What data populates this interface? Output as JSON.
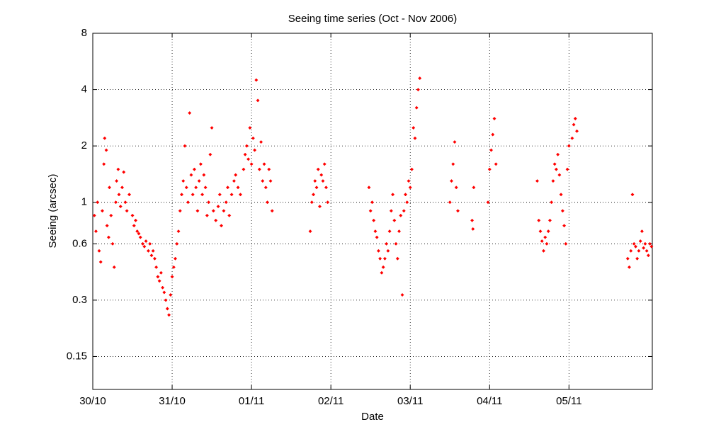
{
  "chart_data": {
    "type": "scatter",
    "title": "Seeing time series (Oct - Nov 2006)",
    "xlabel": "Date",
    "ylabel": "Seeing (arcsec)",
    "color": "#ff0000",
    "ylog": true,
    "grid": true,
    "xlim": [
      0,
      7.05
    ],
    "xticks": [
      {
        "value": 0,
        "label": "30/10"
      },
      {
        "value": 1,
        "label": "31/10"
      },
      {
        "value": 2,
        "label": "01/11"
      },
      {
        "value": 3,
        "label": "02/11"
      },
      {
        "value": 4,
        "label": "03/11"
      },
      {
        "value": 5,
        "label": "04/11"
      },
      {
        "value": 6,
        "label": "05/11"
      }
    ],
    "ylim": [
      0.1,
      8
    ],
    "yticks": [
      0.15,
      0.3,
      0.6,
      1,
      2,
      4,
      8
    ],
    "x": [
      0.02,
      0.04,
      0.06,
      0.08,
      0.1,
      0.12,
      0.14,
      0.15,
      0.17,
      0.18,
      0.2,
      0.21,
      0.23,
      0.25,
      0.27,
      0.29,
      0.3,
      0.32,
      0.33,
      0.35,
      0.37,
      0.39,
      0.41,
      0.43,
      0.46,
      0.5,
      0.52,
      0.54,
      0.56,
      0.58,
      0.6,
      0.63,
      0.65,
      0.67,
      0.7,
      0.72,
      0.74,
      0.76,
      0.78,
      0.8,
      0.82,
      0.84,
      0.86,
      0.88,
      0.9,
      0.92,
      0.94,
      0.96,
      0.98,
      1.0,
      1.02,
      1.04,
      1.06,
      1.08,
      1.1,
      1.12,
      1.14,
      1.16,
      1.18,
      1.2,
      1.22,
      1.24,
      1.26,
      1.28,
      1.3,
      1.32,
      1.34,
      1.36,
      1.38,
      1.4,
      1.42,
      1.44,
      1.46,
      1.48,
      1.5,
      1.52,
      1.55,
      1.58,
      1.6,
      1.62,
      1.65,
      1.68,
      1.7,
      1.72,
      1.75,
      1.78,
      1.8,
      1.83,
      1.86,
      1.9,
      1.92,
      1.94,
      1.96,
      1.98,
      2.0,
      2.02,
      2.04,
      2.06,
      2.08,
      2.1,
      2.12,
      2.14,
      2.16,
      2.18,
      2.2,
      2.22,
      2.24,
      2.26,
      2.74,
      2.76,
      2.78,
      2.8,
      2.82,
      2.84,
      2.86,
      2.88,
      2.9,
      2.92,
      2.94,
      2.96,
      3.48,
      3.5,
      3.52,
      3.54,
      3.56,
      3.58,
      3.6,
      3.62,
      3.64,
      3.66,
      3.68,
      3.7,
      3.72,
      3.74,
      3.76,
      3.78,
      3.8,
      3.82,
      3.84,
      3.86,
      3.88,
      3.9,
      3.92,
      3.94,
      3.96,
      3.98,
      4.0,
      4.02,
      4.04,
      4.06,
      4.08,
      4.1,
      4.12,
      4.5,
      4.52,
      4.54,
      4.56,
      4.58,
      4.6,
      4.78,
      4.79,
      4.8,
      4.98,
      5.0,
      5.02,
      5.04,
      5.06,
      5.08,
      5.6,
      5.62,
      5.64,
      5.66,
      5.68,
      5.7,
      5.72,
      5.74,
      5.76,
      5.78,
      5.8,
      5.82,
      5.84,
      5.86,
      5.88,
      5.9,
      5.92,
      5.94,
      5.96,
      5.98,
      6.0,
      6.04,
      6.06,
      6.08,
      6.1,
      6.74,
      6.76,
      6.78,
      6.8,
      6.82,
      6.84,
      6.86,
      6.88,
      6.9,
      6.92,
      6.94,
      6.96,
      6.98,
      7.0,
      7.02,
      7.04
    ],
    "values": [
      0.85,
      0.7,
      1.0,
      0.55,
      0.48,
      0.9,
      1.6,
      2.2,
      1.9,
      0.75,
      0.65,
      1.2,
      0.85,
      0.6,
      0.45,
      1.0,
      1.3,
      1.5,
      1.1,
      0.95,
      1.2,
      1.45,
      1.0,
      0.9,
      1.1,
      0.85,
      0.75,
      0.8,
      0.7,
      0.68,
      0.65,
      0.6,
      0.58,
      0.62,
      0.55,
      0.6,
      0.52,
      0.55,
      0.5,
      0.45,
      0.4,
      0.38,
      0.42,
      0.35,
      0.33,
      0.3,
      0.27,
      0.25,
      0.32,
      0.4,
      0.45,
      0.5,
      0.6,
      0.7,
      0.9,
      1.1,
      1.3,
      2.0,
      1.2,
      1.0,
      3.0,
      1.4,
      1.1,
      1.5,
      1.2,
      0.9,
      1.3,
      1.6,
      1.1,
      1.4,
      1.2,
      0.85,
      1.0,
      1.8,
      2.5,
      0.9,
      0.8,
      0.95,
      1.1,
      0.75,
      0.9,
      1.0,
      1.2,
      0.85,
      1.1,
      1.3,
      1.4,
      1.2,
      1.1,
      1.5,
      1.8,
      2.0,
      1.7,
      2.5,
      1.6,
      2.2,
      1.9,
      4.5,
      3.5,
      1.5,
      2.1,
      1.3,
      1.6,
      1.2,
      1.0,
      1.5,
      1.3,
      0.9,
      0.7,
      1.0,
      1.1,
      1.3,
      1.2,
      1.5,
      0.95,
      1.4,
      1.3,
      1.6,
      1.2,
      1.0,
      1.2,
      0.9,
      1.0,
      0.8,
      0.7,
      0.65,
      0.55,
      0.5,
      0.42,
      0.45,
      0.5,
      0.6,
      0.55,
      0.7,
      0.9,
      1.1,
      0.8,
      0.6,
      0.5,
      0.7,
      0.85,
      0.32,
      0.9,
      1.1,
      1.0,
      1.3,
      1.2,
      1.5,
      2.5,
      2.2,
      3.2,
      4.0,
      4.6,
      1.0,
      1.3,
      1.6,
      2.1,
      1.2,
      0.9,
      0.8,
      0.72,
      1.2,
      1.0,
      1.5,
      1.9,
      2.3,
      2.8,
      1.6,
      1.3,
      0.8,
      0.7,
      0.62,
      0.55,
      0.65,
      0.6,
      0.7,
      0.8,
      1.0,
      1.3,
      1.6,
      1.5,
      1.8,
      1.4,
      1.1,
      0.9,
      0.75,
      0.6,
      1.5,
      2.0,
      2.2,
      2.6,
      2.8,
      2.4,
      0.5,
      0.45,
      0.55,
      1.1,
      0.6,
      0.58,
      0.5,
      0.55,
      0.62,
      0.7,
      0.57,
      0.6,
      0.55,
      0.52,
      0.6,
      0.58
    ]
  }
}
